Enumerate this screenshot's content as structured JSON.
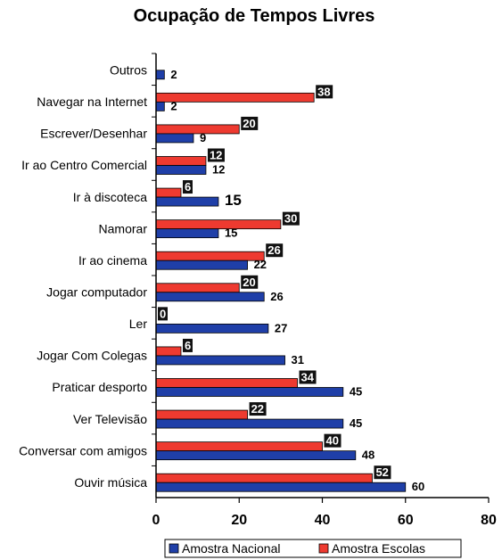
{
  "chart_data": {
    "type": "bar",
    "orientation": "horizontal",
    "title": "Ocupação de Tempos Livres",
    "categories": [
      "Outros",
      "Navegar na Internet",
      "Escrever/Desenhar",
      "Ir ao Centro Comercial",
      "Ir à discoteca",
      "Namorar",
      "Ir ao cinema",
      "Jogar computador",
      "Ler",
      "Jogar Com Colegas",
      "Praticar desporto",
      "Ver Televisão",
      "Conversar com amigos",
      "Ouvir música"
    ],
    "series": [
      {
        "name": "Amostra Nacional",
        "color": "#1f3fa8",
        "values": [
          2,
          2,
          9,
          12,
          15,
          15,
          22,
          26,
          27,
          31,
          45,
          45,
          48,
          60
        ]
      },
      {
        "name": "Amostra Escolas",
        "color": "#ee3a30",
        "values": [
          null,
          38,
          20,
          12,
          6,
          30,
          26,
          20,
          0,
          6,
          34,
          22,
          40,
          52
        ]
      }
    ],
    "xlim": [
      0,
      80
    ],
    "xticks": [
      0,
      20,
      40,
      60,
      80
    ],
    "grid": false,
    "legend_position": "bottom"
  }
}
